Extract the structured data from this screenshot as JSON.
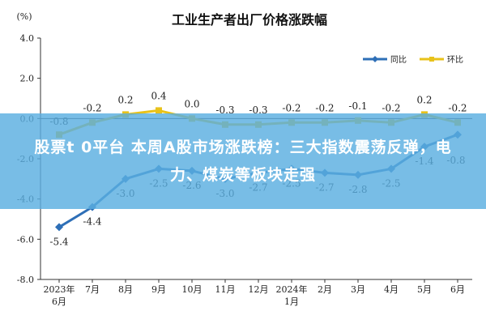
{
  "chart_data": {
    "type": "line",
    "title": "工业生产者出厂价格涨跌幅",
    "ylabel": "(%)",
    "ylim": [
      -8.0,
      4.0
    ],
    "yticks": [
      "4.0",
      "2.0",
      "0.0",
      "-2.0",
      "-4.0",
      "-6.0",
      "-8.0"
    ],
    "categories": [
      {
        "line1": "2023年",
        "line2": "6月"
      },
      {
        "line1": "7月",
        "line2": ""
      },
      {
        "line1": "8月",
        "line2": ""
      },
      {
        "line1": "9月",
        "line2": ""
      },
      {
        "line1": "10月",
        "line2": ""
      },
      {
        "line1": "11月",
        "line2": ""
      },
      {
        "line1": "12月",
        "line2": ""
      },
      {
        "line1": "2024年",
        "line2": "1月"
      },
      {
        "line1": "2月",
        "line2": ""
      },
      {
        "line1": "3月",
        "line2": ""
      },
      {
        "line1": "4月",
        "line2": ""
      },
      {
        "line1": "5月",
        "line2": ""
      },
      {
        "line1": "6月",
        "line2": ""
      }
    ],
    "series": [
      {
        "name": "同比",
        "color": "#2e6fb7",
        "marker": "diamond",
        "values": [
          -5.4,
          -4.4,
          -3.0,
          -2.5,
          -2.6,
          -3.0,
          -2.7,
          -2.5,
          -2.7,
          -2.8,
          -2.5,
          -1.4,
          -0.8
        ],
        "labels": [
          "-5.4",
          "-4.4",
          "-3.0",
          "-2.5",
          "-2.6",
          "-3.0",
          "-2.7",
          "-2.5",
          "-2.7",
          "-2.8",
          "-2.5",
          "-1.4",
          "-0.8"
        ]
      },
      {
        "name": "环比",
        "color": "#e8c21a",
        "marker": "square",
        "values": [
          -0.8,
          -0.2,
          0.2,
          0.4,
          0.0,
          -0.3,
          -0.3,
          -0.2,
          -0.2,
          -0.1,
          -0.2,
          0.2,
          -0.2
        ],
        "labels": [
          "-0.8",
          "-0.2",
          "0.2",
          "0.4",
          "0.0",
          "-0.3",
          "-0.3",
          "-0.2",
          "-0.2",
          "-0.1",
          "-0.2",
          "0.2",
          "-0.2"
        ]
      }
    ],
    "grid": false,
    "legend_position": "top-right"
  },
  "overlay": {
    "headline": "股票t 0平台  本周A股市场涨跌榜：三大指数震荡反弹，电力、煤炭等板块走强",
    "background": "#5aafe1"
  }
}
